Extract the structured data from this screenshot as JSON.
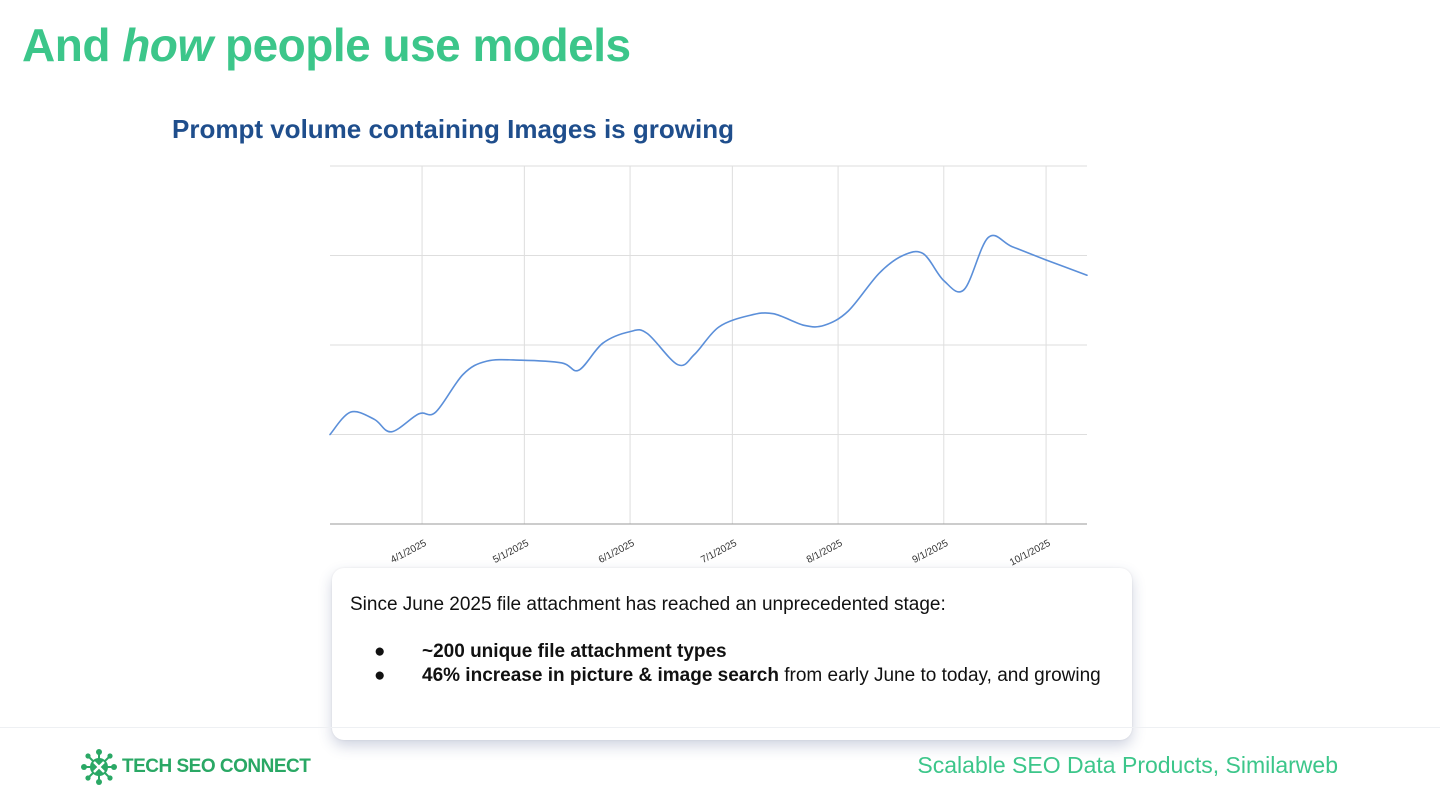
{
  "slide": {
    "title_before": "And ",
    "title_emphasis": "how",
    "title_after": " people use models"
  },
  "chart_data": {
    "type": "line",
    "title": "Prompt volume containing Images is growing",
    "xlabel": "",
    "ylabel": "",
    "x_ticks": [
      "4/1/2025",
      "5/1/2025",
      "6/1/2025",
      "7/1/2025",
      "8/1/2025",
      "9/1/2025",
      "10/1/2025"
    ],
    "x_range": [
      "2025-03-05",
      "2025-10-13"
    ],
    "ylim": [
      0,
      4
    ],
    "y_gridlines": [
      1,
      2,
      3,
      4
    ],
    "grid": true,
    "legend": "none",
    "color": "#5b8fd9",
    "series": [
      {
        "x": [
          "2025-03-05",
          "2025-03-11",
          "2025-03-18",
          "2025-03-23",
          "2025-03-31",
          "2025-04-05",
          "2025-04-13",
          "2025-04-20",
          "2025-04-30",
          "2025-05-12",
          "2025-05-17",
          "2025-05-24",
          "2025-06-01",
          "2025-06-06",
          "2025-06-15",
          "2025-06-20",
          "2025-06-27",
          "2025-07-06",
          "2025-07-13",
          "2025-07-22",
          "2025-07-28",
          "2025-08-04",
          "2025-08-13",
          "2025-08-20",
          "2025-08-26",
          "2025-09-01",
          "2025-09-07",
          "2025-09-14",
          "2025-09-21",
          "2025-10-01",
          "2025-10-13"
        ],
        "values": [
          1.0,
          1.25,
          1.17,
          1.03,
          1.23,
          1.25,
          1.67,
          1.82,
          1.83,
          1.8,
          1.72,
          2.02,
          2.15,
          2.13,
          1.78,
          1.9,
          2.2,
          2.33,
          2.35,
          2.22,
          2.22,
          2.38,
          2.8,
          3.0,
          3.02,
          2.72,
          2.62,
          3.2,
          3.1,
          2.95,
          2.78
        ]
      }
    ]
  },
  "card": {
    "intro": "Since June 2025 file attachment has reached an unprecedented stage:",
    "bullet_glyph": "●",
    "bullets": [
      {
        "bold": "~200 unique file attachment types",
        "rest": ""
      },
      {
        "bold": "46% increase in picture & image search",
        "rest": "  from early June to today, and growing"
      }
    ]
  },
  "footer": {
    "logo_text": "TECH SEO CONNECT",
    "credit": "Scalable SEO Data Products, Similarweb"
  }
}
